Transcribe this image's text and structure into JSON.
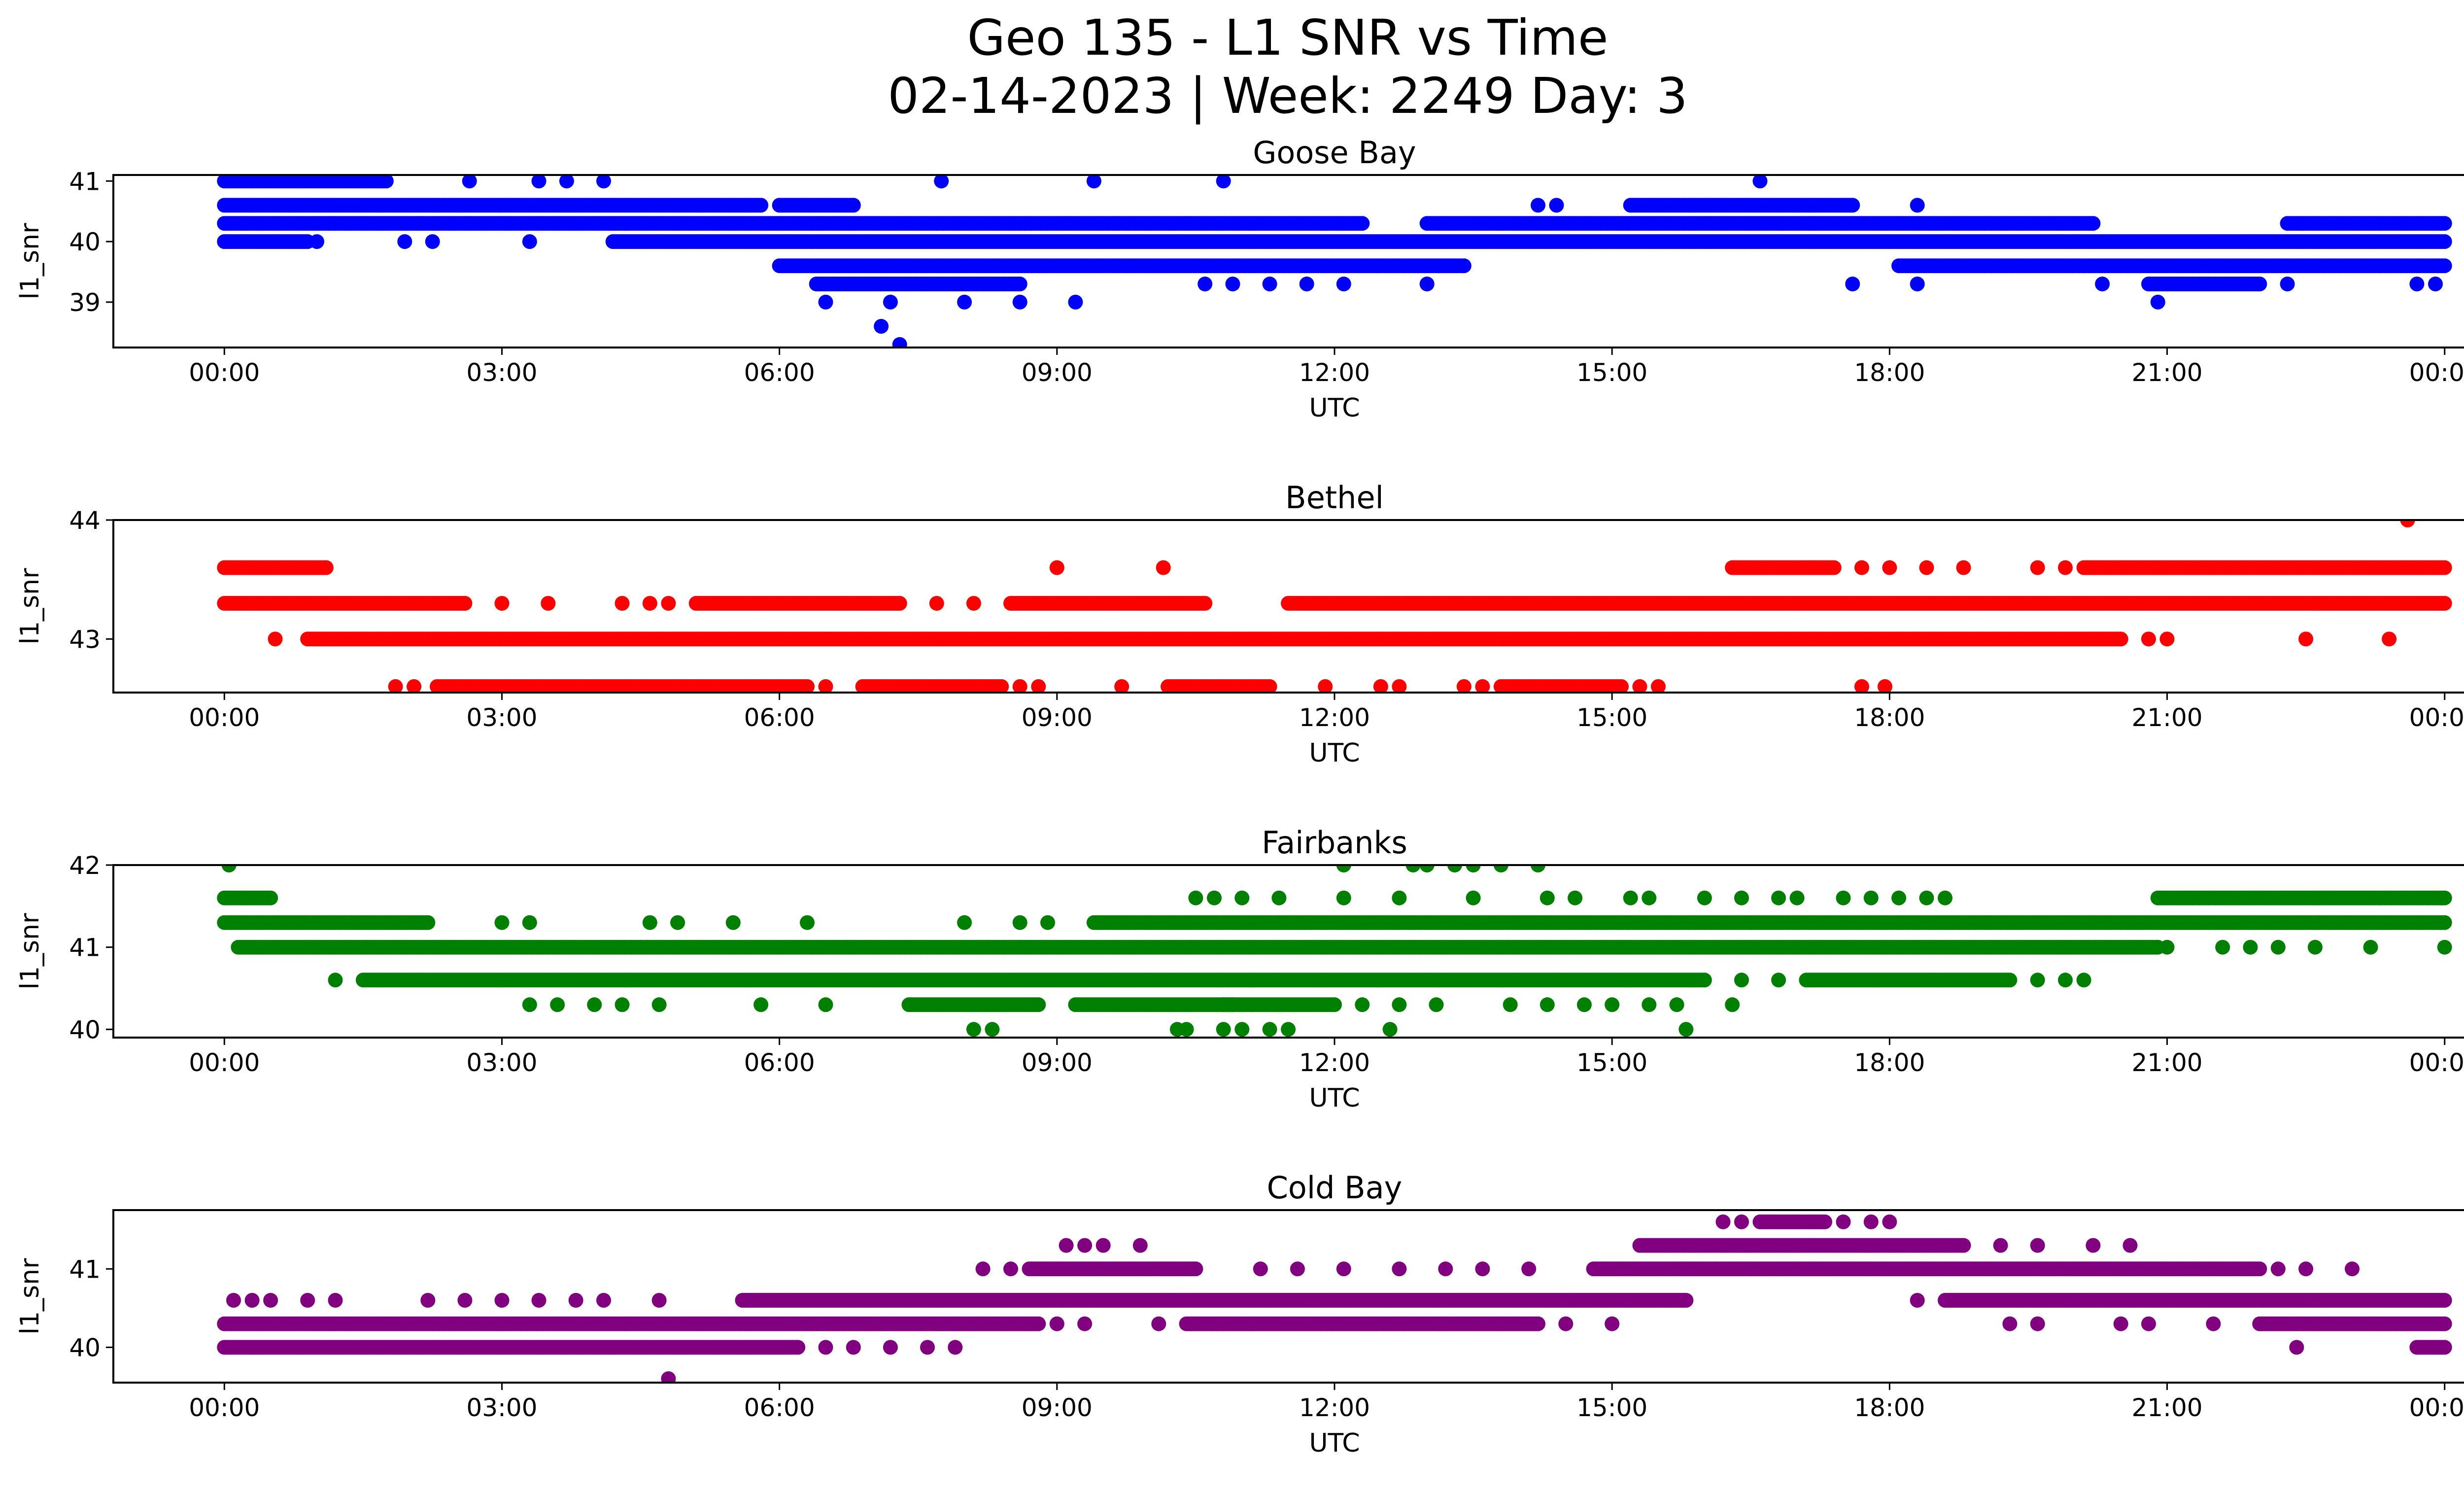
{
  "figure": {
    "title_line1": "Geo 135 - L1 SNR vs Time",
    "title_line2": "02-14-2023 | Week: 2249 Day: 3"
  },
  "chart_data": [
    {
      "type": "scatter",
      "title": "Goose Bay",
      "xlabel": "UTC",
      "ylabel": "l1_snr",
      "color": "#0000ff",
      "xlim": [
        "-01:12",
        "25:12"
      ],
      "ylim": [
        38.25,
        41.1
      ],
      "x_ticks": [
        "00:00",
        "03:00",
        "06:00",
        "09:00",
        "12:00",
        "15:00",
        "18:00",
        "21:00",
        "00:00"
      ],
      "y_ticks": [
        39,
        40,
        41
      ],
      "bands": [
        {
          "y": 41.0,
          "from": 0.0,
          "to": 1.75
        },
        {
          "y": 40.6,
          "from": 0.0,
          "to": 5.8
        },
        {
          "y": 40.6,
          "from": 6.0,
          "to": 6.8
        },
        {
          "y": 40.3,
          "from": 0.0,
          "to": 12.3
        },
        {
          "y": 40.3,
          "from": 13.0,
          "to": 20.2
        },
        {
          "y": 40.3,
          "from": 22.3,
          "to": 24.0
        },
        {
          "y": 40.0,
          "from": 0.0,
          "to": 0.9
        },
        {
          "y": 40.0,
          "from": 4.2,
          "to": 24.0
        },
        {
          "y": 39.6,
          "from": 6.0,
          "to": 13.4
        },
        {
          "y": 39.6,
          "from": 18.1,
          "to": 24.0
        },
        {
          "y": 39.3,
          "from": 6.4,
          "to": 8.6
        },
        {
          "y": 39.3,
          "from": 20.8,
          "to": 22.0
        },
        {
          "y": 40.6,
          "from": 15.2,
          "to": 17.6
        }
      ],
      "points": [
        {
          "x": 2.65,
          "y": 41.0
        },
        {
          "x": 3.4,
          "y": 41.0
        },
        {
          "x": 3.7,
          "y": 41.0
        },
        {
          "x": 4.1,
          "y": 41.0
        },
        {
          "x": 7.75,
          "y": 41.0
        },
        {
          "x": 9.4,
          "y": 41.0
        },
        {
          "x": 10.8,
          "y": 41.0
        },
        {
          "x": 16.6,
          "y": 41.0
        },
        {
          "x": 1.0,
          "y": 40.0
        },
        {
          "x": 1.95,
          "y": 40.0
        },
        {
          "x": 2.25,
          "y": 40.0
        },
        {
          "x": 3.3,
          "y": 40.0
        },
        {
          "x": 6.5,
          "y": 39.0
        },
        {
          "x": 7.2,
          "y": 39.0
        },
        {
          "x": 8.0,
          "y": 39.0
        },
        {
          "x": 8.6,
          "y": 39.0
        },
        {
          "x": 9.2,
          "y": 39.0
        },
        {
          "x": 20.9,
          "y": 39.0
        },
        {
          "x": 7.1,
          "y": 38.6
        },
        {
          "x": 7.3,
          "y": 38.3
        },
        {
          "x": 10.6,
          "y": 39.3
        },
        {
          "x": 10.9,
          "y": 39.3
        },
        {
          "x": 11.3,
          "y": 39.3
        },
        {
          "x": 11.7,
          "y": 39.3
        },
        {
          "x": 12.1,
          "y": 39.3
        },
        {
          "x": 13.0,
          "y": 39.3
        },
        {
          "x": 17.6,
          "y": 39.3
        },
        {
          "x": 18.3,
          "y": 39.3
        },
        {
          "x": 20.3,
          "y": 39.3
        },
        {
          "x": 22.3,
          "y": 39.3
        },
        {
          "x": 23.7,
          "y": 39.3
        },
        {
          "x": 23.9,
          "y": 39.3
        },
        {
          "x": 14.2,
          "y": 40.6
        },
        {
          "x": 14.4,
          "y": 40.6
        },
        {
          "x": 18.3,
          "y": 40.6
        }
      ]
    },
    {
      "type": "scatter",
      "title": "Bethel",
      "xlabel": "UTC",
      "ylabel": "l1_snr",
      "color": "#ff0000",
      "xlim": [
        "-01:12",
        "25:12"
      ],
      "ylim": [
        42.55,
        44.0
      ],
      "x_ticks": [
        "00:00",
        "03:00",
        "06:00",
        "09:00",
        "12:00",
        "15:00",
        "18:00",
        "21:00",
        "00:00"
      ],
      "y_ticks": [
        43,
        44
      ],
      "bands": [
        {
          "y": 43.6,
          "from": 0.0,
          "to": 1.1
        },
        {
          "y": 43.6,
          "from": 16.3,
          "to": 17.4
        },
        {
          "y": 43.6,
          "from": 20.1,
          "to": 24.0
        },
        {
          "y": 43.3,
          "from": 0.0,
          "to": 2.6
        },
        {
          "y": 43.3,
          "from": 5.1,
          "to": 7.3
        },
        {
          "y": 43.3,
          "from": 8.5,
          "to": 10.6
        },
        {
          "y": 43.3,
          "from": 11.5,
          "to": 24.0
        },
        {
          "y": 43.0,
          "from": 0.9,
          "to": 20.5
        },
        {
          "y": 42.6,
          "from": 2.3,
          "to": 6.3
        },
        {
          "y": 42.6,
          "from": 6.9,
          "to": 8.4
        },
        {
          "y": 42.6,
          "from": 10.2,
          "to": 11.3
        },
        {
          "y": 42.6,
          "from": 13.8,
          "to": 15.1
        }
      ],
      "points": [
        {
          "x": 9.0,
          "y": 43.6
        },
        {
          "x": 10.15,
          "y": 43.6
        },
        {
          "x": 17.7,
          "y": 43.6
        },
        {
          "x": 18.0,
          "y": 43.6
        },
        {
          "x": 18.4,
          "y": 43.6
        },
        {
          "x": 18.8,
          "y": 43.6
        },
        {
          "x": 19.6,
          "y": 43.6
        },
        {
          "x": 19.9,
          "y": 43.6
        },
        {
          "x": 23.6,
          "y": 44.0
        },
        {
          "x": 3.5,
          "y": 43.3
        },
        {
          "x": 4.3,
          "y": 43.3
        },
        {
          "x": 4.6,
          "y": 43.3
        },
        {
          "x": 4.8,
          "y": 43.3
        },
        {
          "x": 7.7,
          "y": 43.3
        },
        {
          "x": 8.1,
          "y": 43.3
        },
        {
          "x": 3.0,
          "y": 43.3
        },
        {
          "x": 0.55,
          "y": 43.0
        },
        {
          "x": 20.8,
          "y": 43.0
        },
        {
          "x": 21.0,
          "y": 43.0
        },
        {
          "x": 22.5,
          "y": 43.0
        },
        {
          "x": 23.4,
          "y": 43.0
        },
        {
          "x": 1.85,
          "y": 42.6
        },
        {
          "x": 2.05,
          "y": 42.6
        },
        {
          "x": 6.5,
          "y": 42.6
        },
        {
          "x": 8.6,
          "y": 42.6
        },
        {
          "x": 8.8,
          "y": 42.6
        },
        {
          "x": 9.7,
          "y": 42.6
        },
        {
          "x": 11.9,
          "y": 42.6
        },
        {
          "x": 12.5,
          "y": 42.6
        },
        {
          "x": 12.7,
          "y": 42.6
        },
        {
          "x": 13.4,
          "y": 42.6
        },
        {
          "x": 13.6,
          "y": 42.6
        },
        {
          "x": 15.3,
          "y": 42.6
        },
        {
          "x": 15.5,
          "y": 42.6
        },
        {
          "x": 17.7,
          "y": 42.6
        },
        {
          "x": 17.95,
          "y": 42.6
        }
      ]
    },
    {
      "type": "scatter",
      "title": "Fairbanks",
      "xlabel": "UTC",
      "ylabel": "l1_snr",
      "color": "#008000",
      "xlim": [
        "-01:12",
        "25:12"
      ],
      "ylim": [
        39.9,
        42.0
      ],
      "x_ticks": [
        "00:00",
        "03:00",
        "06:00",
        "09:00",
        "12:00",
        "15:00",
        "18:00",
        "21:00",
        "00:00"
      ],
      "y_ticks": [
        40,
        41,
        42
      ],
      "bands": [
        {
          "y": 41.6,
          "from": 0.0,
          "to": 0.5
        },
        {
          "y": 41.6,
          "from": 20.9,
          "to": 24.0
        },
        {
          "y": 41.3,
          "from": 0.0,
          "to": 2.2
        },
        {
          "y": 41.3,
          "from": 9.4,
          "to": 24.0
        },
        {
          "y": 41.0,
          "from": 0.15,
          "to": 20.9
        },
        {
          "y": 40.6,
          "from": 1.5,
          "to": 16.0
        },
        {
          "y": 40.6,
          "from": 17.1,
          "to": 19.3
        },
        {
          "y": 40.3,
          "from": 7.4,
          "to": 8.8
        },
        {
          "y": 40.3,
          "from": 9.2,
          "to": 10.9
        },
        {
          "y": 40.3,
          "from": 10.8,
          "to": 12.0
        }
      ],
      "points": [
        {
          "x": 0.05,
          "y": 42.0
        },
        {
          "x": 12.1,
          "y": 42.0
        },
        {
          "x": 12.85,
          "y": 42.0
        },
        {
          "x": 13.0,
          "y": 42.0
        },
        {
          "x": 13.3,
          "y": 42.0
        },
        {
          "x": 13.5,
          "y": 42.0
        },
        {
          "x": 13.8,
          "y": 42.0
        },
        {
          "x": 14.2,
          "y": 42.0
        },
        {
          "x": 10.5,
          "y": 41.6
        },
        {
          "x": 10.7,
          "y": 41.6
        },
        {
          "x": 11.0,
          "y": 41.6
        },
        {
          "x": 11.4,
          "y": 41.6
        },
        {
          "x": 12.1,
          "y": 41.6
        },
        {
          "x": 12.7,
          "y": 41.6
        },
        {
          "x": 13.5,
          "y": 41.6
        },
        {
          "x": 14.3,
          "y": 41.6
        },
        {
          "x": 14.6,
          "y": 41.6
        },
        {
          "x": 15.2,
          "y": 41.6
        },
        {
          "x": 15.4,
          "y": 41.6
        },
        {
          "x": 16.0,
          "y": 41.6
        },
        {
          "x": 16.4,
          "y": 41.6
        },
        {
          "x": 16.8,
          "y": 41.6
        },
        {
          "x": 17.0,
          "y": 41.6
        },
        {
          "x": 17.5,
          "y": 41.6
        },
        {
          "x": 17.8,
          "y": 41.6
        },
        {
          "x": 18.1,
          "y": 41.6
        },
        {
          "x": 18.4,
          "y": 41.6
        },
        {
          "x": 18.6,
          "y": 41.6
        },
        {
          "x": 3.0,
          "y": 41.3
        },
        {
          "x": 3.3,
          "y": 41.3
        },
        {
          "x": 4.6,
          "y": 41.3
        },
        {
          "x": 4.9,
          "y": 41.3
        },
        {
          "x": 5.5,
          "y": 41.3
        },
        {
          "x": 6.3,
          "y": 41.3
        },
        {
          "x": 8.0,
          "y": 41.3
        },
        {
          "x": 8.6,
          "y": 41.3
        },
        {
          "x": 8.9,
          "y": 41.3
        },
        {
          "x": 21.0,
          "y": 41.0
        },
        {
          "x": 21.6,
          "y": 41.0
        },
        {
          "x": 21.9,
          "y": 41.0
        },
        {
          "x": 22.2,
          "y": 41.0
        },
        {
          "x": 22.6,
          "y": 41.0
        },
        {
          "x": 23.2,
          "y": 41.0
        },
        {
          "x": 24.0,
          "y": 41.0
        },
        {
          "x": 1.2,
          "y": 40.6
        },
        {
          "x": 16.4,
          "y": 40.6
        },
        {
          "x": 16.8,
          "y": 40.6
        },
        {
          "x": 19.6,
          "y": 40.6
        },
        {
          "x": 19.9,
          "y": 40.6
        },
        {
          "x": 20.1,
          "y": 40.6
        },
        {
          "x": 3.3,
          "y": 40.3
        },
        {
          "x": 3.6,
          "y": 40.3
        },
        {
          "x": 4.0,
          "y": 40.3
        },
        {
          "x": 4.3,
          "y": 40.3
        },
        {
          "x": 4.7,
          "y": 40.3
        },
        {
          "x": 5.8,
          "y": 40.3
        },
        {
          "x": 6.5,
          "y": 40.3
        },
        {
          "x": 12.3,
          "y": 40.3
        },
        {
          "x": 12.7,
          "y": 40.3
        },
        {
          "x": 13.1,
          "y": 40.3
        },
        {
          "x": 13.9,
          "y": 40.3
        },
        {
          "x": 14.3,
          "y": 40.3
        },
        {
          "x": 14.7,
          "y": 40.3
        },
        {
          "x": 15.0,
          "y": 40.3
        },
        {
          "x": 15.4,
          "y": 40.3
        },
        {
          "x": 15.7,
          "y": 40.3
        },
        {
          "x": 16.3,
          "y": 40.3
        },
        {
          "x": 8.1,
          "y": 40.0
        },
        {
          "x": 8.3,
          "y": 40.0
        },
        {
          "x": 10.3,
          "y": 40.0
        },
        {
          "x": 10.4,
          "y": 40.0
        },
        {
          "x": 10.8,
          "y": 40.0
        },
        {
          "x": 11.0,
          "y": 40.0
        },
        {
          "x": 11.3,
          "y": 40.0
        },
        {
          "x": 11.5,
          "y": 40.0
        },
        {
          "x": 12.6,
          "y": 40.0
        },
        {
          "x": 15.8,
          "y": 40.0
        }
      ]
    },
    {
      "type": "scatter",
      "title": "Cold Bay",
      "xlabel": "UTC",
      "ylabel": "l1_snr",
      "color": "#800080",
      "xlim": [
        "-01:12",
        "25:12"
      ],
      "ylim": [
        39.55,
        41.75
      ],
      "x_ticks": [
        "00:00",
        "03:00",
        "06:00",
        "09:00",
        "12:00",
        "15:00",
        "18:00",
        "21:00",
        "00:00"
      ],
      "y_ticks": [
        40,
        41
      ],
      "bands": [
        {
          "y": 41.6,
          "from": 16.6,
          "to": 17.3
        },
        {
          "y": 41.3,
          "from": 15.3,
          "to": 18.8
        },
        {
          "y": 41.0,
          "from": 8.7,
          "to": 10.5
        },
        {
          "y": 41.0,
          "from": 14.8,
          "to": 22.0
        },
        {
          "y": 40.6,
          "from": 5.6,
          "to": 15.8
        },
        {
          "y": 40.6,
          "from": 18.6,
          "to": 24.0
        },
        {
          "y": 40.3,
          "from": 0.0,
          "to": 8.8
        },
        {
          "y": 40.3,
          "from": 10.4,
          "to": 14.2
        },
        {
          "y": 40.3,
          "from": 22.0,
          "to": 24.0
        },
        {
          "y": 40.0,
          "from": 0.0,
          "to": 6.2
        },
        {
          "y": 40.0,
          "from": 23.7,
          "to": 24.0
        }
      ],
      "points": [
        {
          "x": 16.2,
          "y": 41.6
        },
        {
          "x": 16.4,
          "y": 41.6
        },
        {
          "x": 17.5,
          "y": 41.6
        },
        {
          "x": 17.8,
          "y": 41.6
        },
        {
          "x": 18.0,
          "y": 41.6
        },
        {
          "x": 9.1,
          "y": 41.3
        },
        {
          "x": 9.3,
          "y": 41.3
        },
        {
          "x": 9.5,
          "y": 41.3
        },
        {
          "x": 9.9,
          "y": 41.3
        },
        {
          "x": 19.2,
          "y": 41.3
        },
        {
          "x": 19.6,
          "y": 41.3
        },
        {
          "x": 20.2,
          "y": 41.3
        },
        {
          "x": 20.6,
          "y": 41.3
        },
        {
          "x": 8.2,
          "y": 41.0
        },
        {
          "x": 8.5,
          "y": 41.0
        },
        {
          "x": 11.2,
          "y": 41.0
        },
        {
          "x": 11.6,
          "y": 41.0
        },
        {
          "x": 12.1,
          "y": 41.0
        },
        {
          "x": 12.7,
          "y": 41.0
        },
        {
          "x": 13.2,
          "y": 41.0
        },
        {
          "x": 13.6,
          "y": 41.0
        },
        {
          "x": 14.1,
          "y": 41.0
        },
        {
          "x": 22.2,
          "y": 41.0
        },
        {
          "x": 22.5,
          "y": 41.0
        },
        {
          "x": 23.0,
          "y": 41.0
        },
        {
          "x": 0.1,
          "y": 40.6
        },
        {
          "x": 0.3,
          "y": 40.6
        },
        {
          "x": 0.5,
          "y": 40.6
        },
        {
          "x": 0.9,
          "y": 40.6
        },
        {
          "x": 1.2,
          "y": 40.6
        },
        {
          "x": 2.2,
          "y": 40.6
        },
        {
          "x": 2.6,
          "y": 40.6
        },
        {
          "x": 3.0,
          "y": 40.6
        },
        {
          "x": 3.4,
          "y": 40.6
        },
        {
          "x": 3.8,
          "y": 40.6
        },
        {
          "x": 4.1,
          "y": 40.6
        },
        {
          "x": 4.7,
          "y": 40.6
        },
        {
          "x": 18.3,
          "y": 40.6
        },
        {
          "x": 9.0,
          "y": 40.3
        },
        {
          "x": 9.3,
          "y": 40.3
        },
        {
          "x": 10.1,
          "y": 40.3
        },
        {
          "x": 14.5,
          "y": 40.3
        },
        {
          "x": 15.0,
          "y": 40.3
        },
        {
          "x": 19.3,
          "y": 40.3
        },
        {
          "x": 19.6,
          "y": 40.3
        },
        {
          "x": 20.5,
          "y": 40.3
        },
        {
          "x": 20.8,
          "y": 40.3
        },
        {
          "x": 21.5,
          "y": 40.3
        },
        {
          "x": 6.5,
          "y": 40.0
        },
        {
          "x": 6.8,
          "y": 40.0
        },
        {
          "x": 7.2,
          "y": 40.0
        },
        {
          "x": 7.6,
          "y": 40.0
        },
        {
          "x": 7.9,
          "y": 40.0
        },
        {
          "x": 22.4,
          "y": 40.0
        },
        {
          "x": 4.8,
          "y": 39.6
        }
      ]
    }
  ]
}
